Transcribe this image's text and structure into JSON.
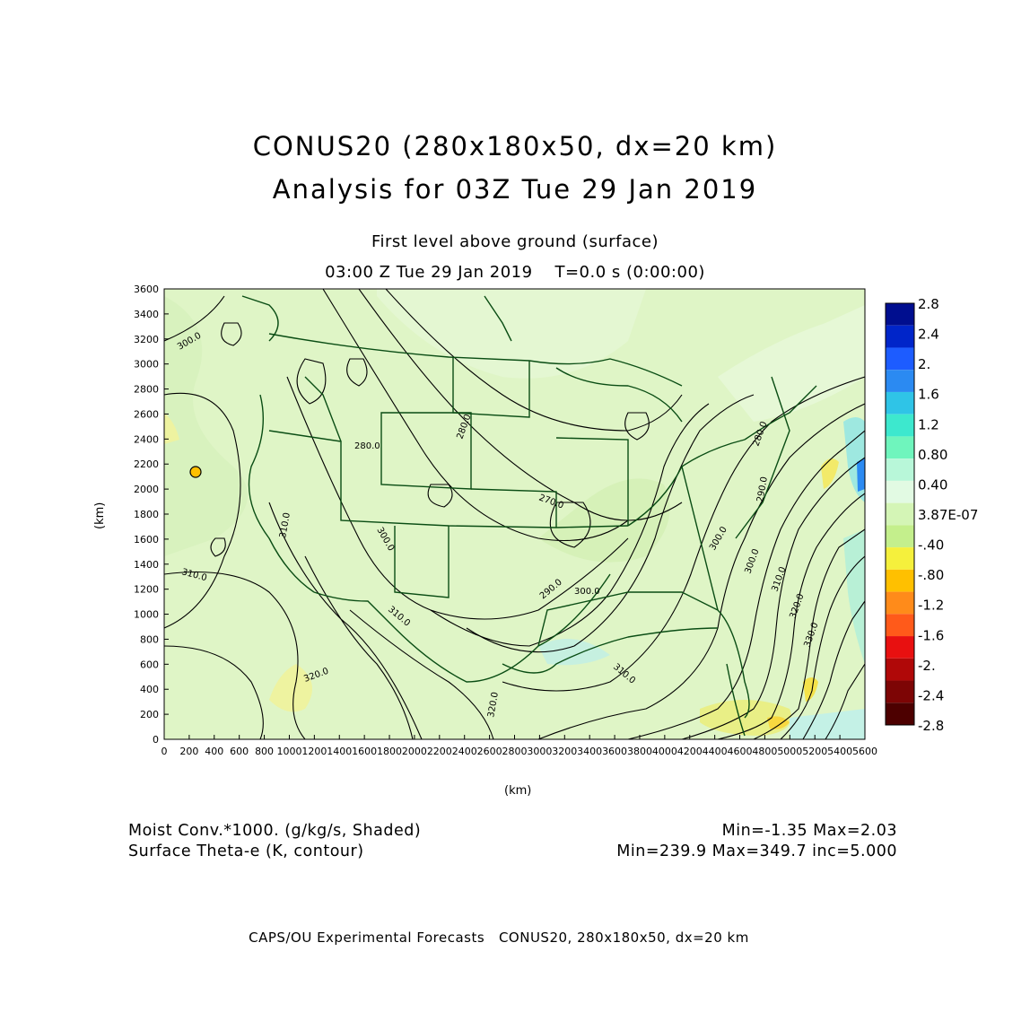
{
  "title_line1": "CONUS20 (280x180x50, dx=20 km)",
  "title_line2": "Analysis for 03Z Tue 29 Jan 2019",
  "subtitle_line1": "First level above ground (surface)",
  "subtitle_line2": "03:00 Z Tue 29 Jan 2019    T=0.0 s (0:00:00)",
  "y_axis_label": "(km)",
  "x_axis_label": "(km)",
  "x_ticks": [
    "0",
    "200",
    "400",
    "600",
    "800",
    "1000",
    "1200",
    "1400",
    "1600",
    "1800",
    "2000",
    "2200",
    "2400",
    "2600",
    "2800",
    "3000",
    "3200",
    "3400",
    "3600",
    "3800",
    "4000",
    "4200",
    "4400",
    "4600",
    "4800",
    "5000",
    "5200",
    "5400",
    "5600"
  ],
  "y_ticks": [
    "0",
    "200",
    "400",
    "600",
    "800",
    "1000",
    "1200",
    "1400",
    "1600",
    "1800",
    "2000",
    "2200",
    "2400",
    "2600",
    "2800",
    "3000",
    "3200",
    "3400",
    "3600"
  ],
  "colorbar": {
    "colors": [
      "#000e8f",
      "#0025c9",
      "#1d5cff",
      "#2b8af2",
      "#2fc4e7",
      "#3de8ce",
      "#6ff5bd",
      "#b8f7d9",
      "#e2fae3",
      "#d4f5b6",
      "#c4ef8c",
      "#f5f03c",
      "#ffc000",
      "#ff8b1a",
      "#ff5a1a",
      "#e81010",
      "#b00808",
      "#7d0505",
      "#4d0000"
    ],
    "labels": [
      "2.8",
      "2.4",
      "2.",
      "1.6",
      "1.2",
      "0.80",
      "0.40",
      "3.87E-07",
      "-.40",
      "-.80",
      "-1.2",
      "-1.6",
      "-2.",
      "-2.4",
      "-2.8"
    ]
  },
  "contour_labels": [
    "300.0",
    "280.0",
    "280.0",
    "270.0",
    "310.0",
    "300.0",
    "310.0",
    "310.0",
    "290.0",
    "300.0",
    "300.0",
    "310.0",
    "320.0",
    "330.0",
    "320.0",
    "320.0",
    "310.0",
    "280.0",
    "290.0",
    "300.0"
  ],
  "footer": {
    "shaded_field": "Moist Conv.*1000. (g/kg/s, Shaded)",
    "shaded_range": "Min=-1.35 Max=2.03",
    "contour_field": "Surface Theta-e (K, contour)",
    "contour_range": "Min=239.9 Max=349.7 inc=5.000",
    "credit": "CAPS/OU Experimental Forecasts   CONUS20, 280x180x50, dx=20 km"
  }
}
